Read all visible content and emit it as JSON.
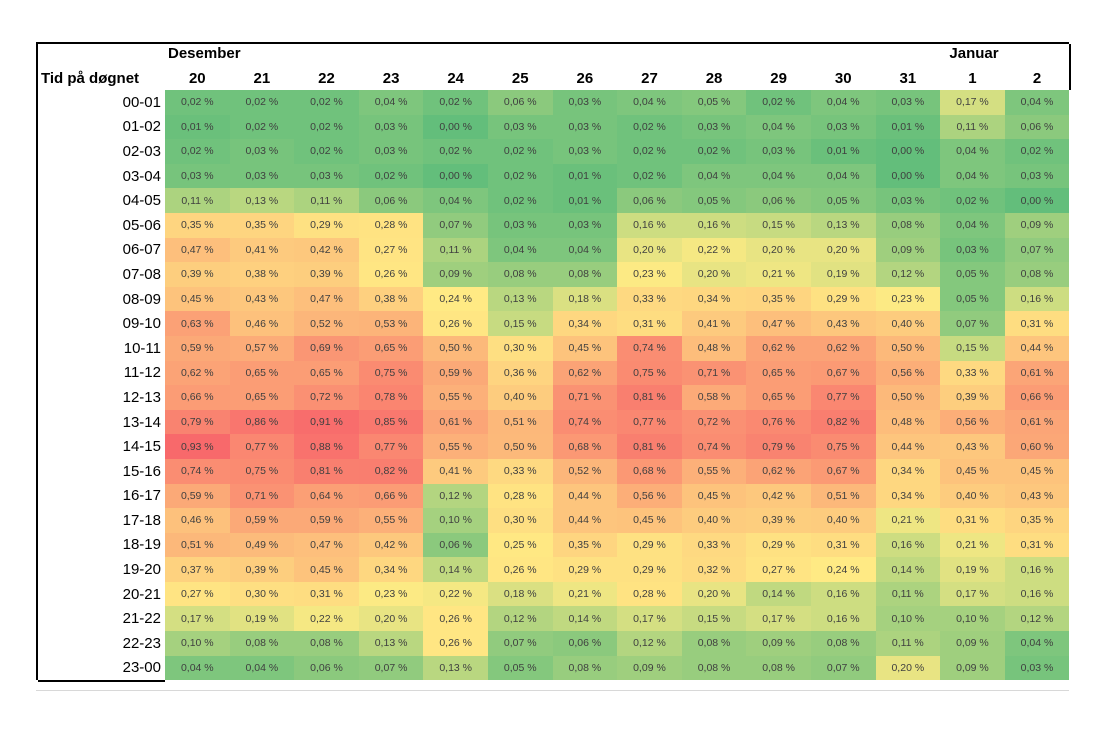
{
  "window": {
    "background": "#FFFFFF"
  },
  "table": {
    "corner_label": "Tid på døgnet",
    "month_groups": [
      {
        "label": "Desember",
        "over_column": "20"
      },
      {
        "label": "Januar",
        "over_column": "1"
      }
    ]
  },
  "colors": {
    "scale_min_green": "#63BE7B",
    "scale_mid_yellow": "#FFEB84",
    "scale_max_red": "#F8696B",
    "cell_text": "#3F3F3F",
    "header_text": "#000000",
    "border": "#000000"
  },
  "chart_data": {
    "type": "heatmap",
    "title": "",
    "xlabel_groups": [
      "Desember",
      "Januar"
    ],
    "x_categories": [
      "20",
      "21",
      "22",
      "23",
      "24",
      "25",
      "26",
      "27",
      "28",
      "29",
      "30",
      "31",
      "1",
      "2"
    ],
    "y_categories": [
      "00-01",
      "01-02",
      "02-03",
      "03-04",
      "04-05",
      "05-06",
      "06-07",
      "07-08",
      "08-09",
      "09-10",
      "10-11",
      "11-12",
      "12-13",
      "13-14",
      "14-15",
      "15-16",
      "16-17",
      "17-18",
      "18-19",
      "19-20",
      "20-21",
      "21-22",
      "22-23",
      "23-00"
    ],
    "values": [
      [
        0.02,
        0.02,
        0.02,
        0.04,
        0.02,
        0.06,
        0.03,
        0.04,
        0.05,
        0.02,
        0.04,
        0.03,
        0.17,
        0.04
      ],
      [
        0.01,
        0.02,
        0.02,
        0.03,
        0.0,
        0.03,
        0.03,
        0.02,
        0.03,
        0.04,
        0.03,
        0.01,
        0.11,
        0.06
      ],
      [
        0.02,
        0.03,
        0.02,
        0.03,
        0.02,
        0.02,
        0.03,
        0.02,
        0.02,
        0.03,
        0.01,
        0.0,
        0.04,
        0.02
      ],
      [
        0.03,
        0.03,
        0.03,
        0.02,
        0.0,
        0.02,
        0.01,
        0.02,
        0.04,
        0.04,
        0.04,
        0.0,
        0.04,
        0.03
      ],
      [
        0.11,
        0.13,
        0.11,
        0.06,
        0.04,
        0.02,
        0.01,
        0.06,
        0.05,
        0.06,
        0.05,
        0.03,
        0.02,
        0.0
      ],
      [
        0.35,
        0.35,
        0.29,
        0.28,
        0.07,
        0.03,
        0.03,
        0.16,
        0.16,
        0.15,
        0.13,
        0.08,
        0.04,
        0.09
      ],
      [
        0.47,
        0.41,
        0.42,
        0.27,
        0.11,
        0.04,
        0.04,
        0.2,
        0.22,
        0.2,
        0.2,
        0.09,
        0.03,
        0.07
      ],
      [
        0.39,
        0.38,
        0.39,
        0.26,
        0.09,
        0.08,
        0.08,
        0.23,
        0.2,
        0.21,
        0.19,
        0.12,
        0.05,
        0.08
      ],
      [
        0.45,
        0.43,
        0.47,
        0.38,
        0.24,
        0.13,
        0.18,
        0.33,
        0.34,
        0.35,
        0.29,
        0.23,
        0.05,
        0.16
      ],
      [
        0.63,
        0.46,
        0.52,
        0.53,
        0.26,
        0.15,
        0.34,
        0.31,
        0.41,
        0.47,
        0.43,
        0.4,
        0.07,
        0.31
      ],
      [
        0.59,
        0.57,
        0.69,
        0.65,
        0.5,
        0.3,
        0.45,
        0.74,
        0.48,
        0.62,
        0.62,
        0.5,
        0.15,
        0.44
      ],
      [
        0.62,
        0.65,
        0.65,
        0.75,
        0.59,
        0.36,
        0.62,
        0.75,
        0.71,
        0.65,
        0.67,
        0.56,
        0.33,
        0.61
      ],
      [
        0.66,
        0.65,
        0.72,
        0.78,
        0.55,
        0.4,
        0.71,
        0.81,
        0.58,
        0.65,
        0.77,
        0.5,
        0.39,
        0.66
      ],
      [
        0.79,
        0.86,
        0.91,
        0.85,
        0.61,
        0.51,
        0.74,
        0.77,
        0.72,
        0.76,
        0.82,
        0.48,
        0.56,
        0.61
      ],
      [
        0.93,
        0.77,
        0.88,
        0.77,
        0.55,
        0.5,
        0.68,
        0.81,
        0.74,
        0.79,
        0.75,
        0.44,
        0.43,
        0.6
      ],
      [
        0.74,
        0.75,
        0.81,
        0.82,
        0.41,
        0.33,
        0.52,
        0.68,
        0.55,
        0.62,
        0.67,
        0.34,
        0.45,
        0.45
      ],
      [
        0.59,
        0.71,
        0.64,
        0.66,
        0.12,
        0.28,
        0.44,
        0.56,
        0.45,
        0.42,
        0.51,
        0.34,
        0.4,
        0.43
      ],
      [
        0.46,
        0.59,
        0.59,
        0.55,
        0.1,
        0.3,
        0.44,
        0.45,
        0.4,
        0.39,
        0.4,
        0.21,
        0.31,
        0.35
      ],
      [
        0.51,
        0.49,
        0.47,
        0.42,
        0.06,
        0.25,
        0.35,
        0.29,
        0.33,
        0.29,
        0.31,
        0.16,
        0.21,
        0.31
      ],
      [
        0.37,
        0.39,
        0.45,
        0.34,
        0.14,
        0.26,
        0.29,
        0.29,
        0.32,
        0.27,
        0.24,
        0.14,
        0.19,
        0.16
      ],
      [
        0.27,
        0.3,
        0.31,
        0.23,
        0.22,
        0.18,
        0.21,
        0.28,
        0.2,
        0.14,
        0.16,
        0.11,
        0.17,
        0.16
      ],
      [
        0.17,
        0.19,
        0.22,
        0.2,
        0.26,
        0.12,
        0.14,
        0.17,
        0.15,
        0.17,
        0.16,
        0.1,
        0.1,
        0.12
      ],
      [
        0.1,
        0.08,
        0.08,
        0.13,
        0.26,
        0.07,
        0.06,
        0.12,
        0.08,
        0.09,
        0.08,
        0.11,
        0.09,
        0.04
      ],
      [
        0.04,
        0.04,
        0.06,
        0.07,
        0.13,
        0.05,
        0.08,
        0.09,
        0.08,
        0.08,
        0.07,
        0.2,
        0.09,
        0.03
      ]
    ],
    "value_suffix": " %",
    "value_format": "two_decimals_comma",
    "colorscale": {
      "type": "3-color",
      "min_color": "#63BE7B",
      "mid_color": "#FFEB84",
      "max_color": "#F8696B",
      "midpoint": "median"
    },
    "legend": "none",
    "grid": "off"
  }
}
